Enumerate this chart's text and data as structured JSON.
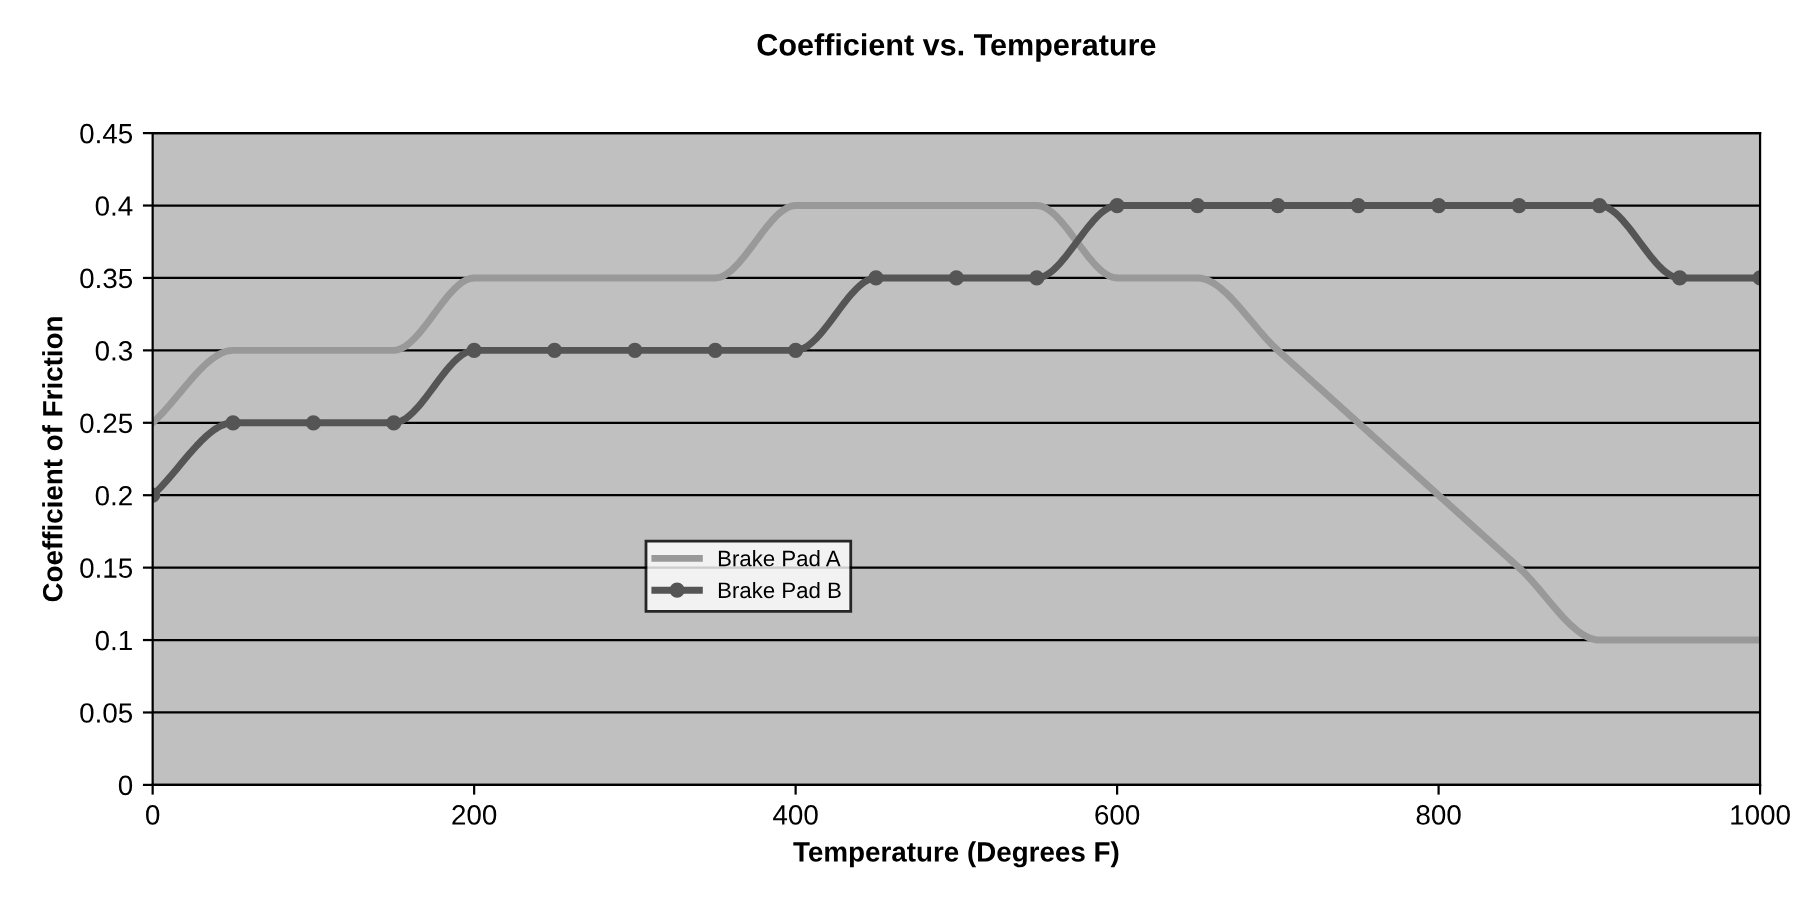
{
  "chart_data": {
    "type": "line",
    "title": "Coefficient vs. Temperature",
    "xlabel": "Temperature (Degrees F)",
    "ylabel": "Coefficient of Friction",
    "x": [
      0,
      50,
      100,
      150,
      200,
      250,
      300,
      350,
      400,
      450,
      500,
      550,
      600,
      650,
      700,
      750,
      800,
      850,
      900,
      950,
      1000
    ],
    "series": [
      {
        "name": "Brake Pad A",
        "color": "#999999",
        "marker": "none",
        "values": [
          0.25,
          0.3,
          0.3,
          0.3,
          0.35,
          0.35,
          0.35,
          0.35,
          0.4,
          0.4,
          0.4,
          0.4,
          0.35,
          0.35,
          0.3,
          0.25,
          0.2,
          0.15,
          0.1,
          0.1,
          0.1
        ]
      },
      {
        "name": "Brake Pad B",
        "color": "#555555",
        "marker": "circle",
        "values": [
          0.2,
          0.25,
          0.25,
          0.25,
          0.3,
          0.3,
          0.3,
          0.3,
          0.3,
          0.35,
          0.35,
          0.35,
          0.4,
          0.4,
          0.4,
          0.4,
          0.4,
          0.4,
          0.4,
          0.35,
          0.35
        ]
      }
    ],
    "xlim": [
      0,
      1000
    ],
    "xticks": [
      0,
      200,
      400,
      600,
      800,
      1000
    ],
    "ylim": [
      0,
      0.45
    ],
    "yticks": [
      0,
      0.05,
      0.1,
      0.15,
      0.2,
      0.25,
      0.3,
      0.35,
      0.4,
      0.45
    ],
    "grid": "y",
    "legend": "center left",
    "line_style": "solid"
  }
}
